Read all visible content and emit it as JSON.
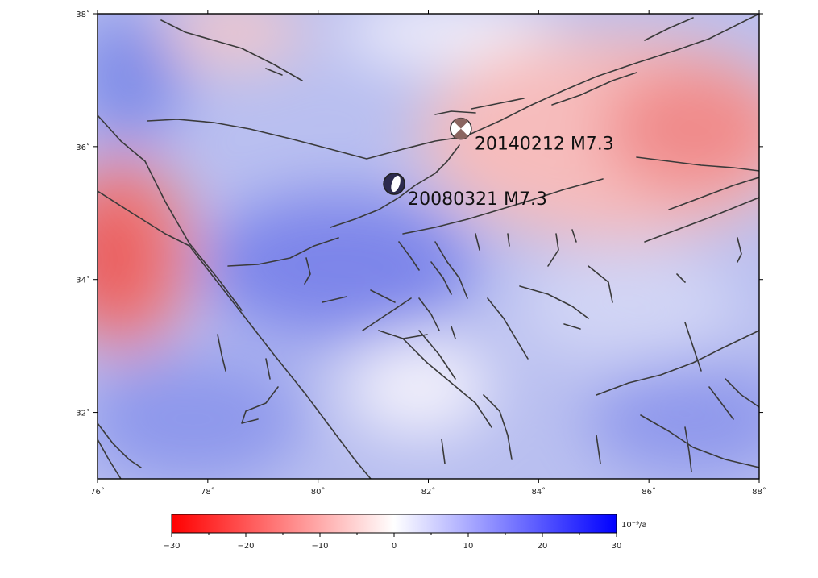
{
  "map": {
    "longitude_range": [
      76,
      88
    ],
    "latitude_range": [
      31,
      38
    ],
    "x_ticks": [
      {
        "value": 76,
        "label": "76˚"
      },
      {
        "value": 78,
        "label": "78˚"
      },
      {
        "value": 80,
        "label": "80˚"
      },
      {
        "value": 82,
        "label": "82˚"
      },
      {
        "value": 84,
        "label": "84˚"
      },
      {
        "value": 86,
        "label": "86˚"
      },
      {
        "value": 88,
        "label": "88˚"
      }
    ],
    "y_ticks": [
      {
        "value": 38,
        "label": "38˚"
      },
      {
        "value": 36,
        "label": "36˚"
      },
      {
        "value": 34,
        "label": "34˚"
      },
      {
        "value": 32,
        "label": "32˚"
      }
    ],
    "grid": false
  },
  "events": [
    {
      "label": "20140212 M7.3",
      "lon": 82.59,
      "lat": 36.27,
      "color": "#8a6560",
      "mechanism": "strike-slip"
    },
    {
      "label": "20080321 M7.3",
      "lon": 81.38,
      "lat": 35.44,
      "color": "#2d2b4e",
      "mechanism": "normal"
    }
  ],
  "colorbar": {
    "unit": "10⁻⁹/a",
    "min": -30,
    "max": 30,
    "ticks": [
      {
        "value": -30,
        "label": "−30"
      },
      {
        "value": -20,
        "label": "−20"
      },
      {
        "value": -10,
        "label": "−10"
      },
      {
        "value": 0,
        "label": "0"
      },
      {
        "value": 10,
        "label": "10"
      },
      {
        "value": 20,
        "label": "20"
      },
      {
        "value": 30,
        "label": "30"
      }
    ],
    "low_color": "#ff0000",
    "mid_color": "#ffffff",
    "high_color": "#0000ff"
  }
}
